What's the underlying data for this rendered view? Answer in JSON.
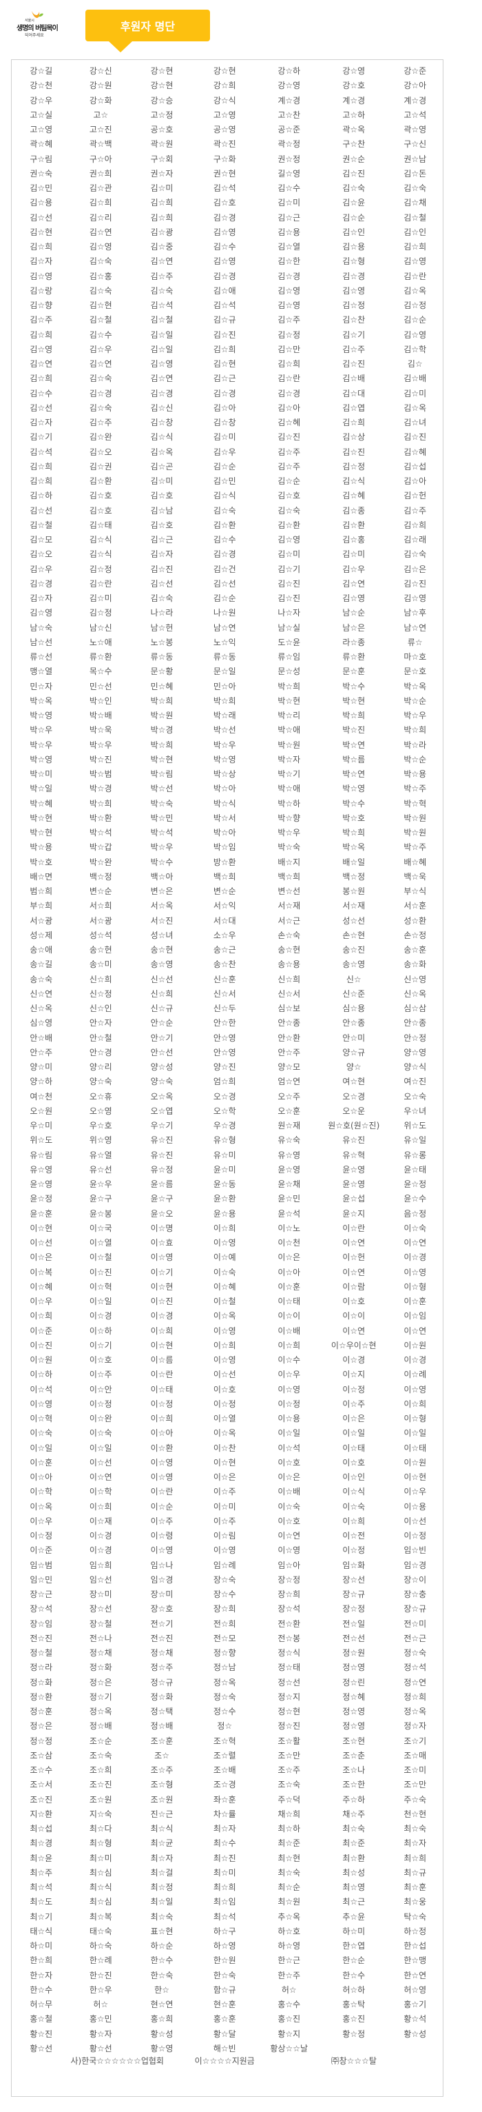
{
  "logo": {
    "small": "서울시",
    "main": "생명의 버팀목이",
    "sub": "되어주세요",
    "colors": {
      "orange": "#f5a623",
      "green": "#8dc63f"
    }
  },
  "header": {
    "title": "후원자 명단",
    "accent": "#fdc00f"
  },
  "rows": [
    [
      "강☆길",
      "강☆신",
      "강☆현",
      "강☆현",
      "강☆하",
      "강☆영",
      "강☆준"
    ],
    [
      "강☆천",
      "강☆원",
      "강☆현",
      "강☆희",
      "강☆영",
      "강☆호",
      "강☆아"
    ],
    [
      "강☆우",
      "강☆화",
      "강☆승",
      "강☆식",
      "계☆경",
      "계☆경",
      "계☆경"
    ],
    [
      "고☆실",
      "고☆",
      "고☆정",
      "고☆영",
      "고☆찬",
      "고☆하",
      "고☆석"
    ],
    [
      "고☆영",
      "고☆진",
      "공☆호",
      "공☆영",
      "공☆준",
      "곽☆옥",
      "곽☆영"
    ],
    [
      "곽☆혜",
      "곽☆백",
      "곽☆원",
      "곽☆진",
      "곽☆정",
      "구☆찬",
      "구☆신"
    ],
    [
      "구☆림",
      "구☆아",
      "구☆회",
      "구☆화",
      "권☆정",
      "권☆순",
      "권☆남"
    ],
    [
      "권☆숙",
      "권☆희",
      "권☆자",
      "권☆현",
      "길☆영",
      "김☆진",
      "김☆돈"
    ],
    [
      "김☆민",
      "김☆관",
      "김☆미",
      "김☆석",
      "김☆수",
      "김☆숙",
      "김☆숙"
    ],
    [
      "김☆용",
      "김☆희",
      "김☆희",
      "김☆호",
      "김☆미",
      "김☆윤",
      "김☆채"
    ],
    [
      "김☆선",
      "김☆리",
      "김☆희",
      "김☆경",
      "김☆근",
      "김☆순",
      "김☆철"
    ],
    [
      "김☆현",
      "김☆연",
      "김☆광",
      "김☆영",
      "김☆용",
      "김☆인",
      "김☆인"
    ],
    [
      "김☆희",
      "김☆영",
      "김☆중",
      "김☆수",
      "김☆열",
      "김☆용",
      "김☆희"
    ],
    [
      "김☆자",
      "김☆숙",
      "김☆연",
      "김☆영",
      "김☆한",
      "김☆형",
      "김☆영"
    ],
    [
      "김☆영",
      "김☆홍",
      "김☆주",
      "김☆경",
      "김☆경",
      "김☆경",
      "김☆란"
    ],
    [
      "김☆랑",
      "김☆숙",
      "김☆숙",
      "김☆애",
      "김☆영",
      "김☆영",
      "김☆옥"
    ],
    [
      "김☆향",
      "김☆현",
      "김☆석",
      "김☆석",
      "김☆영",
      "김☆정",
      "김☆정"
    ],
    [
      "김☆주",
      "김☆철",
      "김☆철",
      "김☆규",
      "김☆주",
      "김☆찬",
      "김☆순"
    ],
    [
      "김☆희",
      "김☆수",
      "김☆일",
      "김☆진",
      "김☆정",
      "김☆기",
      "김☆영"
    ],
    [
      "김☆영",
      "김☆우",
      "김☆일",
      "김☆희",
      "김☆만",
      "김☆주",
      "김☆학"
    ],
    [
      "김☆연",
      "김☆연",
      "김☆영",
      "김☆현",
      "김☆희",
      "김☆진",
      "김☆"
    ],
    [
      "김☆희",
      "김☆숙",
      "김☆연",
      "김☆근",
      "김☆란",
      "김☆배",
      "김☆배"
    ],
    [
      "김☆수",
      "김☆경",
      "김☆경",
      "김☆경",
      "김☆경",
      "김☆대",
      "김☆미"
    ],
    [
      "김☆선",
      "김☆숙",
      "김☆신",
      "김☆아",
      "김☆아",
      "김☆엽",
      "김☆옥"
    ],
    [
      "김☆자",
      "김☆주",
      "김☆창",
      "김☆창",
      "김☆혜",
      "김☆희",
      "김☆녀"
    ],
    [
      "김☆기",
      "김☆완",
      "김☆식",
      "김☆미",
      "김☆진",
      "김☆상",
      "김☆진"
    ],
    [
      "김☆석",
      "김☆오",
      "김☆옥",
      "김☆우",
      "김☆주",
      "김☆진",
      "김☆혜"
    ],
    [
      "김☆희",
      "김☆권",
      "김☆곤",
      "김☆순",
      "김☆주",
      "김☆정",
      "김☆섭"
    ],
    [
      "김☆희",
      "김☆환",
      "김☆미",
      "김☆민",
      "김☆순",
      "김☆식",
      "김☆아"
    ],
    [
      "김☆하",
      "김☆호",
      "김☆호",
      "김☆식",
      "김☆호",
      "김☆혜",
      "김☆헌"
    ],
    [
      "김☆선",
      "김☆호",
      "김☆남",
      "김☆숙",
      "김☆숙",
      "김☆종",
      "김☆주"
    ],
    [
      "김☆철",
      "김☆태",
      "김☆호",
      "김☆환",
      "김☆환",
      "김☆환",
      "김☆희"
    ],
    [
      "김☆모",
      "김☆식",
      "김☆근",
      "김☆수",
      "김☆영",
      "김☆홍",
      "김☆래"
    ],
    [
      "김☆오",
      "김☆식",
      "김☆자",
      "김☆경",
      "김☆미",
      "김☆미",
      "김☆숙"
    ],
    [
      "김☆우",
      "김☆정",
      "김☆진",
      "김☆건",
      "김☆기",
      "김☆우",
      "김☆은"
    ],
    [
      "김☆경",
      "김☆란",
      "김☆선",
      "김☆선",
      "김☆진",
      "김☆연",
      "김☆진"
    ],
    [
      "김☆자",
      "김☆미",
      "김☆숙",
      "김☆순",
      "김☆진",
      "김☆영",
      "김☆영"
    ],
    [
      "김☆영",
      "김☆정",
      "나☆라",
      "나☆원",
      "나☆자",
      "남☆순",
      "남☆후"
    ],
    [
      "남☆숙",
      "남☆신",
      "남☆헌",
      "남☆연",
      "남☆실",
      "남☆은",
      "남☆연"
    ],
    [
      "남☆선",
      "노☆애",
      "노☆봉",
      "노☆익",
      "도☆윤",
      "라☆종",
      "류☆"
    ],
    [
      "류☆선",
      "류☆환",
      "류☆동",
      "류☆동",
      "류☆임",
      "류☆환",
      "마☆호"
    ],
    [
      "맹☆열",
      "목☆수",
      "문☆황",
      "문☆일",
      "문☆성",
      "문☆훈",
      "문☆호"
    ],
    [
      "민☆자",
      "민☆선",
      "민☆혜",
      "민☆아",
      "박☆희",
      "박☆수",
      "박☆옥"
    ],
    [
      "박☆옥",
      "박☆인",
      "박☆희",
      "박☆희",
      "박☆현",
      "박☆현",
      "박☆순"
    ],
    [
      "박☆영",
      "박☆배",
      "박☆원",
      "박☆래",
      "박☆리",
      "박☆희",
      "박☆우"
    ],
    [
      "박☆우",
      "박☆욱",
      "박☆경",
      "박☆선",
      "박☆애",
      "박☆진",
      "박☆희"
    ],
    [
      "박☆우",
      "박☆우",
      "박☆희",
      "박☆우",
      "박☆원",
      "박☆연",
      "박☆라"
    ],
    [
      "박☆영",
      "박☆진",
      "박☆현",
      "박☆영",
      "박☆자",
      "박☆름",
      "박☆순"
    ],
    [
      "박☆미",
      "박☆범",
      "박☆림",
      "박☆상",
      "박☆기",
      "박☆연",
      "박☆용"
    ],
    [
      "박☆일",
      "박☆경",
      "박☆선",
      "박☆아",
      "박☆애",
      "박☆영",
      "박☆주"
    ],
    [
      "박☆혜",
      "박☆희",
      "박☆숙",
      "박☆식",
      "박☆하",
      "박☆수",
      "박☆혁"
    ],
    [
      "박☆현",
      "박☆환",
      "박☆민",
      "박☆서",
      "박☆향",
      "박☆호",
      "박☆원"
    ],
    [
      "박☆현",
      "박☆석",
      "박☆석",
      "박☆아",
      "박☆우",
      "박☆희",
      "박☆원"
    ],
    [
      "박☆용",
      "박☆갑",
      "박☆우",
      "박☆임",
      "박☆숙",
      "박☆옥",
      "박☆주"
    ],
    [
      "박☆호",
      "박☆완",
      "박☆수",
      "방☆환",
      "배☆지",
      "배☆일",
      "배☆혜"
    ],
    [
      "배☆면",
      "백☆정",
      "백☆아",
      "백☆희",
      "백☆희",
      "백☆정",
      "백☆욱"
    ],
    [
      "범☆희",
      "변☆순",
      "변☆은",
      "변☆순",
      "변☆선",
      "봉☆원",
      "부☆식"
    ],
    [
      "부☆희",
      "서☆희",
      "서☆옥",
      "서☆익",
      "서☆재",
      "서☆재",
      "서☆훈"
    ],
    [
      "서☆광",
      "서☆광",
      "서☆진",
      "서☆대",
      "서☆근",
      "성☆선",
      "성☆환"
    ],
    [
      "성☆제",
      "성☆석",
      "성☆녀",
      "소☆우",
      "손☆숙",
      "손☆현",
      "손☆정"
    ],
    [
      "송☆애",
      "송☆현",
      "송☆현",
      "송☆근",
      "송☆현",
      "송☆진",
      "송☆훈"
    ],
    [
      "송☆길",
      "송☆미",
      "송☆영",
      "송☆찬",
      "송☆용",
      "송☆영",
      "송☆화"
    ],
    [
      "송☆숙",
      "신☆희",
      "신☆선",
      "신☆훈",
      "신☆희",
      "신☆",
      "신☆영"
    ],
    [
      "신☆연",
      "신☆정",
      "신☆희",
      "신☆서",
      "신☆서",
      "신☆준",
      "신☆옥"
    ],
    [
      "신☆옥",
      "신☆인",
      "신☆규",
      "신☆두",
      "심☆보",
      "심☆용",
      "심☆삼"
    ],
    [
      "심☆영",
      "안☆자",
      "안☆순",
      "안☆한",
      "안☆종",
      "안☆종",
      "안☆종"
    ],
    [
      "안☆배",
      "안☆철",
      "안☆기",
      "안☆영",
      "안☆환",
      "안☆미",
      "안☆정"
    ],
    [
      "안☆주",
      "안☆경",
      "안☆선",
      "안☆영",
      "안☆주",
      "양☆규",
      "양☆영"
    ],
    [
      "양☆미",
      "양☆리",
      "양☆성",
      "양☆진",
      "양☆모",
      "양☆",
      "양☆식"
    ],
    [
      "양☆하",
      "양☆숙",
      "양☆숙",
      "엄☆희",
      "엄☆연",
      "여☆현",
      "여☆진"
    ],
    [
      "여☆천",
      "오☆휴",
      "오☆옥",
      "오☆경",
      "오☆주",
      "오☆경",
      "오☆숙"
    ],
    [
      "오☆원",
      "오☆영",
      "오☆엽",
      "오☆학",
      "오☆훈",
      "오☆운",
      "우☆녀"
    ],
    [
      "우☆미",
      "우☆호",
      "우☆기",
      "우☆경",
      "원☆재",
      "원☆호(원☆진)",
      "위☆도"
    ],
    [
      "위☆도",
      "위☆영",
      "유☆진",
      "유☆형",
      "유☆숙",
      "유☆진",
      "유☆일"
    ],
    [
      "유☆림",
      "유☆열",
      "유☆진",
      "유☆미",
      "유☆영",
      "유☆혁",
      "유☆롱"
    ],
    [
      "유☆영",
      "유☆선",
      "유☆정",
      "윤☆미",
      "윤☆영",
      "윤☆영",
      "윤☆태"
    ],
    [
      "윤☆영",
      "윤☆우",
      "윤☆름",
      "윤☆동",
      "윤☆채",
      "윤☆영",
      "윤☆정"
    ],
    [
      "윤☆정",
      "윤☆구",
      "윤☆구",
      "윤☆환",
      "윤☆민",
      "윤☆섭",
      "윤☆수"
    ],
    [
      "윤☆훈",
      "윤☆봉",
      "윤☆오",
      "윤☆용",
      "윤☆석",
      "윤☆지",
      "음☆정"
    ],
    [
      "이☆현",
      "이☆국",
      "이☆명",
      "이☆희",
      "이☆노",
      "이☆란",
      "이☆숙"
    ],
    [
      "이☆선",
      "이☆열",
      "이☆효",
      "이☆영",
      "이☆천",
      "이☆연",
      "이☆연"
    ],
    [
      "이☆은",
      "이☆철",
      "이☆영",
      "이☆예",
      "이☆은",
      "이☆헌",
      "이☆경"
    ],
    [
      "이☆복",
      "이☆진",
      "이☆기",
      "이☆숙",
      "이☆아",
      "이☆연",
      "이☆영"
    ],
    [
      "이☆혜",
      "이☆혁",
      "이☆현",
      "이☆혜",
      "이☆훈",
      "이☆람",
      "이☆형"
    ],
    [
      "이☆우",
      "이☆일",
      "이☆진",
      "이☆철",
      "이☆태",
      "이☆호",
      "이☆훈"
    ],
    [
      "이☆희",
      "이☆경",
      "이☆경",
      "이☆옥",
      "이☆이",
      "이☆이",
      "이☆임"
    ],
    [
      "이☆준",
      "이☆하",
      "이☆희",
      "이☆영",
      "이☆배",
      "이☆연",
      "이☆연"
    ],
    [
      "이☆진",
      "이☆기",
      "이☆현",
      "이☆희",
      "이☆희",
      "이☆우이☆현",
      "이☆원"
    ],
    [
      "이☆원",
      "이☆호",
      "이☆름",
      "이☆영",
      "이☆수",
      "이☆경",
      "이☆경"
    ],
    [
      "이☆하",
      "이☆주",
      "이☆란",
      "이☆선",
      "이☆우",
      "이☆지",
      "이☆례"
    ],
    [
      "이☆석",
      "이☆안",
      "이☆태",
      "이☆호",
      "이☆영",
      "이☆정",
      "이☆영"
    ],
    [
      "이☆영",
      "이☆정",
      "이☆정",
      "이☆정",
      "이☆정",
      "이☆주",
      "이☆희"
    ],
    [
      "이☆혁",
      "이☆완",
      "이☆희",
      "이☆열",
      "이☆용",
      "이☆은",
      "이☆형"
    ],
    [
      "이☆숙",
      "이☆숙",
      "이☆아",
      "이☆옥",
      "이☆일",
      "이☆일",
      "이☆일"
    ],
    [
      "이☆일",
      "이☆일",
      "이☆환",
      "이☆찬",
      "이☆석",
      "이☆태",
      "이☆태"
    ],
    [
      "이☆훈",
      "이☆선",
      "이☆영",
      "이☆현",
      "이☆호",
      "이☆호",
      "이☆원"
    ],
    [
      "이☆아",
      "이☆연",
      "이☆영",
      "이☆은",
      "이☆은",
      "이☆인",
      "이☆현"
    ],
    [
      "이☆학",
      "이☆학",
      "이☆란",
      "이☆주",
      "이☆배",
      "이☆식",
      "이☆우"
    ],
    [
      "이☆옥",
      "이☆희",
      "이☆순",
      "이☆미",
      "이☆숙",
      "이☆숙",
      "이☆용"
    ],
    [
      "이☆우",
      "이☆재",
      "이☆주",
      "이☆주",
      "이☆호",
      "이☆희",
      "이☆선"
    ],
    [
      "이☆정",
      "이☆경",
      "이☆령",
      "이☆림",
      "이☆연",
      "이☆전",
      "이☆정"
    ],
    [
      "이☆준",
      "이☆경",
      "이☆영",
      "이☆영",
      "이☆영",
      "이☆정",
      "임☆빈"
    ],
    [
      "임☆범",
      "임☆희",
      "임☆나",
      "임☆례",
      "임☆아",
      "임☆화",
      "임☆경"
    ],
    [
      "임☆민",
      "임☆선",
      "임☆경",
      "장☆숙",
      "장☆정",
      "장☆선",
      "장☆이"
    ],
    [
      "장☆근",
      "장☆미",
      "장☆미",
      "장☆수",
      "장☆희",
      "장☆규",
      "장☆충"
    ],
    [
      "장☆석",
      "장☆선",
      "장☆호",
      "장☆희",
      "장☆석",
      "장☆정",
      "장☆규"
    ],
    [
      "장☆임",
      "장☆철",
      "전☆기",
      "전☆희",
      "전☆환",
      "전☆일",
      "전☆미"
    ],
    [
      "전☆진",
      "전☆나",
      "전☆진",
      "전☆모",
      "전☆봉",
      "전☆선",
      "전☆근"
    ],
    [
      "정☆철",
      "정☆채",
      "정☆채",
      "정☆향",
      "정☆식",
      "정☆원",
      "정☆숙"
    ],
    [
      "정☆라",
      "정☆화",
      "정☆주",
      "정☆남",
      "정☆태",
      "정☆영",
      "정☆석"
    ],
    [
      "정☆화",
      "정☆은",
      "정☆규",
      "정☆옥",
      "정☆선",
      "정☆린",
      "정☆연"
    ],
    [
      "정☆환",
      "정☆기",
      "정☆화",
      "정☆숙",
      "정☆지",
      "정☆혜",
      "정☆희"
    ],
    [
      "정☆훈",
      "정☆옥",
      "정☆택",
      "정☆수",
      "정☆현",
      "정☆영",
      "정☆옥"
    ],
    [
      "정☆은",
      "정☆배",
      "정☆배",
      "정☆",
      "정☆진",
      "정☆영",
      "정☆자"
    ],
    [
      "정☆정",
      "조☆순",
      "조☆훈",
      "조☆혁",
      "조☆활",
      "조☆현",
      "조☆기"
    ],
    [
      "조☆삼",
      "조☆숙",
      "조☆",
      "조☆렬",
      "조☆만",
      "조☆춘",
      "조☆매"
    ],
    [
      "조☆수",
      "조☆희",
      "조☆주",
      "조☆배",
      "조☆주",
      "조☆나",
      "조☆미"
    ],
    [
      "조☆서",
      "조☆진",
      "조☆형",
      "조☆경",
      "조☆숙",
      "조☆한",
      "조☆만"
    ],
    [
      "조☆진",
      "조☆원",
      "조☆원",
      "좌☆훈",
      "주☆덕",
      "주☆하",
      "주☆숙"
    ],
    [
      "지☆환",
      "지☆숙",
      "진☆근",
      "차☆률",
      "채☆희",
      "채☆주",
      "천☆현"
    ],
    [
      "최☆섭",
      "최☆다",
      "최☆식",
      "최☆자",
      "최☆하",
      "최☆숙",
      "최☆숙"
    ],
    [
      "최☆경",
      "최☆형",
      "최☆균",
      "최☆수",
      "최☆준",
      "최☆준",
      "최☆자"
    ],
    [
      "최☆윤",
      "최☆미",
      "최☆자",
      "최☆진",
      "최☆현",
      "최☆환",
      "최☆희"
    ],
    [
      "최☆주",
      "최☆심",
      "최☆걸",
      "최☆미",
      "최☆숙",
      "최☆성",
      "최☆규"
    ],
    [
      "최☆석",
      "최☆식",
      "최☆정",
      "최☆희",
      "최☆순",
      "최☆영",
      "최☆훈"
    ],
    [
      "최☆도",
      "최☆심",
      "최☆일",
      "최☆임",
      "최☆원",
      "최☆근",
      "최☆웅"
    ],
    [
      "최☆기",
      "최☆복",
      "최☆숙",
      "최☆석",
      "추☆옥",
      "추☆윤",
      "탁☆숙"
    ],
    [
      "태☆식",
      "태☆숙",
      "표☆현",
      "하☆구",
      "하☆호",
      "하☆미",
      "하☆정"
    ],
    [
      "하☆미",
      "하☆숙",
      "하☆순",
      "하☆영",
      "하☆영",
      "한☆엽",
      "한☆섭"
    ],
    [
      "한☆희",
      "한☆례",
      "한☆수",
      "한☆원",
      "한☆근",
      "한☆순",
      "한☆맹"
    ],
    [
      "한☆자",
      "한☆진",
      "한☆숙",
      "한☆숙",
      "한☆주",
      "한☆수",
      "한☆연"
    ],
    [
      "한☆수",
      "한☆우",
      "한☆",
      "함☆규",
      "허☆",
      "허☆하",
      "허☆영"
    ],
    [
      "허☆무",
      "허☆",
      "현☆연",
      "현☆훈",
      "홍☆수",
      "홍☆탁",
      "홍☆기"
    ],
    [
      "홍☆철",
      "홍☆민",
      "홍☆희",
      "홍☆훈",
      "홍☆진",
      "홍☆진",
      "황☆석"
    ],
    [
      "황☆진",
      "황☆자",
      "황☆성",
      "황☆달",
      "황☆지",
      "황☆정",
      "황☆성"
    ],
    [
      "황☆선",
      "황☆선",
      "황☆영",
      "해☆빈",
      "황상☆☆날"
    ]
  ],
  "organizations": [
    "사)한국☆☆☆☆☆☆업협회",
    "이☆☆☆☆지원금",
    "㈜창☆☆☆탈"
  ]
}
